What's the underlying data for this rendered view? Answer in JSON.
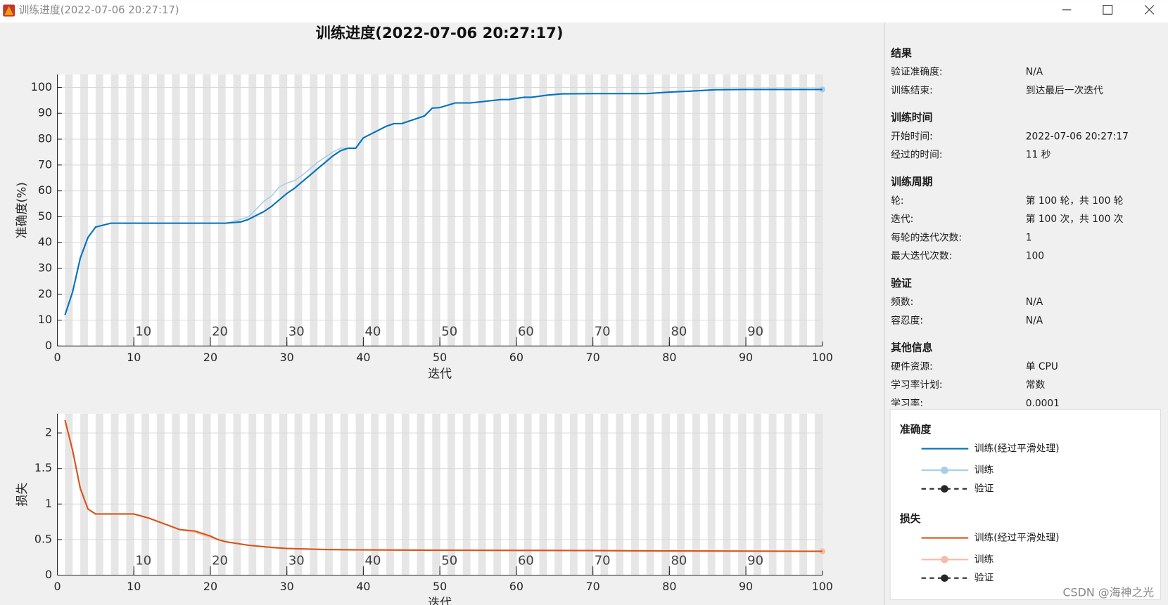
{
  "window": {
    "title": "训练进度(2022-07-06 20:27:17)"
  },
  "chart_data": [
    {
      "type": "line",
      "title": "训练进度(2022-07-06 20:27:17)",
      "xlabel": "迭代",
      "ylabel": "准确度(%)",
      "x": [
        1,
        2,
        3,
        4,
        5,
        7,
        10,
        15,
        20,
        22,
        24,
        25,
        26,
        27,
        28,
        29,
        30,
        31,
        32,
        33,
        34,
        35,
        36,
        37,
        38,
        39,
        40,
        42,
        43,
        44,
        45,
        47,
        48,
        49,
        50,
        52,
        54,
        58,
        59,
        61,
        62,
        64,
        66,
        70,
        77,
        80,
        83,
        86,
        90,
        95,
        100
      ],
      "series": [
        {
          "name": "训练(经过平滑处理)",
          "color": "#0072bd",
          "values": [
            12,
            21,
            34,
            42,
            46,
            47.5,
            47.5,
            47.5,
            47.5,
            47.5,
            48,
            49,
            50.5,
            52,
            54,
            56.5,
            59,
            61,
            63.5,
            66,
            68.5,
            71,
            73.5,
            75.5,
            76.5,
            76.5,
            80.5,
            83.5,
            85,
            86,
            86,
            88,
            89,
            92,
            92.2,
            94,
            94,
            95.3,
            95.3,
            96.2,
            96.2,
            97,
            97.5,
            97.6,
            97.6,
            98.2,
            98.6,
            99.1,
            99.2,
            99.2,
            99.2
          ]
        },
        {
          "name": "训练",
          "color": "#a7cde9",
          "values": [
            12,
            21,
            34,
            42,
            46,
            47.5,
            47.5,
            47.5,
            47.5,
            47.5,
            49,
            50,
            53,
            56,
            58,
            61.5,
            63,
            64,
            66,
            68.5,
            71,
            73,
            75,
            76.5,
            76.5,
            76.5,
            80.5,
            83.5,
            85,
            86,
            86,
            88,
            89,
            92,
            92.2,
            94,
            94,
            95.3,
            95.3,
            96.2,
            96.2,
            97,
            97.5,
            97.6,
            97.6,
            98.2,
            98.6,
            99.1,
            99.2,
            99.2,
            99.2
          ]
        }
      ],
      "xlim": [
        0,
        100
      ],
      "xticks": [
        0,
        10,
        20,
        30,
        40,
        50,
        60,
        70,
        80,
        90,
        100
      ],
      "ylim": [
        0,
        105
      ],
      "yticks": [
        0,
        10,
        20,
        30,
        40,
        50,
        60,
        70,
        80,
        90,
        100
      ],
      "epoch_ticks": [
        10,
        20,
        30,
        40,
        50,
        60,
        70,
        80,
        90
      ],
      "grid": true,
      "legend_title": "准确度",
      "validation_label": "验证"
    },
    {
      "type": "line",
      "xlabel": "迭代",
      "ylabel": "损失",
      "x": [
        1,
        2,
        3,
        4,
        5,
        7,
        10,
        12,
        14,
        16,
        18,
        20,
        21,
        22,
        25,
        28,
        30,
        35,
        40,
        50,
        60,
        70,
        80,
        90,
        100
      ],
      "series": [
        {
          "name": "训练(经过平滑处理)",
          "color": "#d95319",
          "values": [
            2.18,
            1.75,
            1.22,
            0.93,
            0.86,
            0.86,
            0.86,
            0.8,
            0.72,
            0.64,
            0.62,
            0.55,
            0.5,
            0.47,
            0.42,
            0.39,
            0.375,
            0.36,
            0.355,
            0.35,
            0.348,
            0.345,
            0.34,
            0.338,
            0.335
          ]
        },
        {
          "name": "训练",
          "color": "#f4bda6",
          "values": [
            2.18,
            1.75,
            1.22,
            0.93,
            0.86,
            0.86,
            0.86,
            0.8,
            0.72,
            0.64,
            0.6,
            0.53,
            0.5,
            0.47,
            0.42,
            0.39,
            0.375,
            0.36,
            0.355,
            0.35,
            0.348,
            0.345,
            0.34,
            0.338,
            0.335
          ]
        }
      ],
      "xlim": [
        0,
        100
      ],
      "xticks": [
        0,
        10,
        20,
        30,
        40,
        50,
        60,
        70,
        80,
        90,
        100
      ],
      "ylim": [
        0,
        2.27
      ],
      "yticks": [
        0,
        0.5,
        1,
        1.5,
        2
      ],
      "epoch_ticks": [
        10,
        20,
        30,
        40,
        50,
        60,
        70,
        80,
        90
      ],
      "grid": true,
      "legend_title": "损失",
      "validation_label": "验证"
    }
  ],
  "info": [
    {
      "title": "结果",
      "rows": [
        [
          "验证准确度:",
          "N/A"
        ],
        [
          "训练结束:",
          "到达最后一次迭代"
        ]
      ]
    },
    {
      "title": "训练时间",
      "rows": [
        [
          "开始时间:",
          "2022-07-06 20:27:17"
        ],
        [
          "经过的时间:",
          "11 秒"
        ]
      ]
    },
    {
      "title": "训练周期",
      "rows": [
        [
          "轮:",
          "第 100 轮，共 100 轮"
        ],
        [
          "迭代:",
          "第 100 次，共 100 次"
        ],
        [
          "每轮的迭代次数:",
          "1"
        ],
        [
          "最大迭代次数:",
          "100"
        ]
      ]
    },
    {
      "title": "验证",
      "rows": [
        [
          "频数:",
          "N/A"
        ],
        [
          "容忍度:",
          "N/A"
        ]
      ]
    },
    {
      "title": "其他信息",
      "rows": [
        [
          "硬件资源:",
          "单 CPU"
        ],
        [
          "学习率计划:",
          "常数"
        ],
        [
          "学习率:",
          "0.0001"
        ]
      ]
    }
  ],
  "watermark": "CSDN @海神之光"
}
